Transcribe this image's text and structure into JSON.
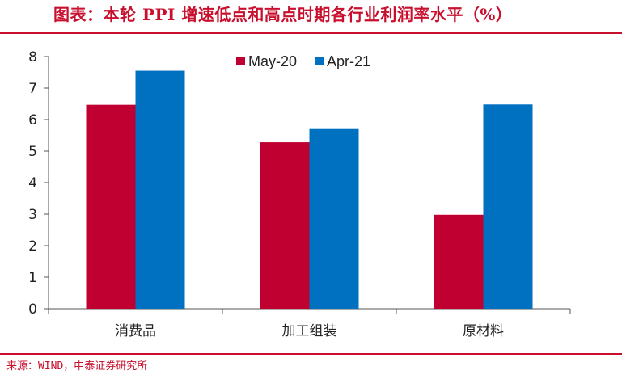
{
  "header": {
    "title": "图表：本轮 PPI 增速低点和高点时期各行业利润率水平（%）"
  },
  "footer": {
    "source": "来源：WIND，中泰证券研究所"
  },
  "chart_data": {
    "type": "bar",
    "title": "图表：本轮 PPI 增速低点和高点时期各行业利润率水平（%）",
    "categories": [
      "消费品",
      "加工组装",
      "原材料"
    ],
    "series": [
      {
        "name": "May-20",
        "color": "#c00030",
        "values": [
          6.47,
          5.28,
          2.98
        ]
      },
      {
        "name": "Apr-21",
        "color": "#0070c0",
        "values": [
          7.55,
          5.7,
          6.48
        ]
      }
    ],
    "ylim": [
      0,
      8
    ],
    "yticks": [
      0,
      1,
      2,
      3,
      4,
      5,
      6,
      7,
      8
    ],
    "legend_position": "top-center",
    "grid": false
  }
}
